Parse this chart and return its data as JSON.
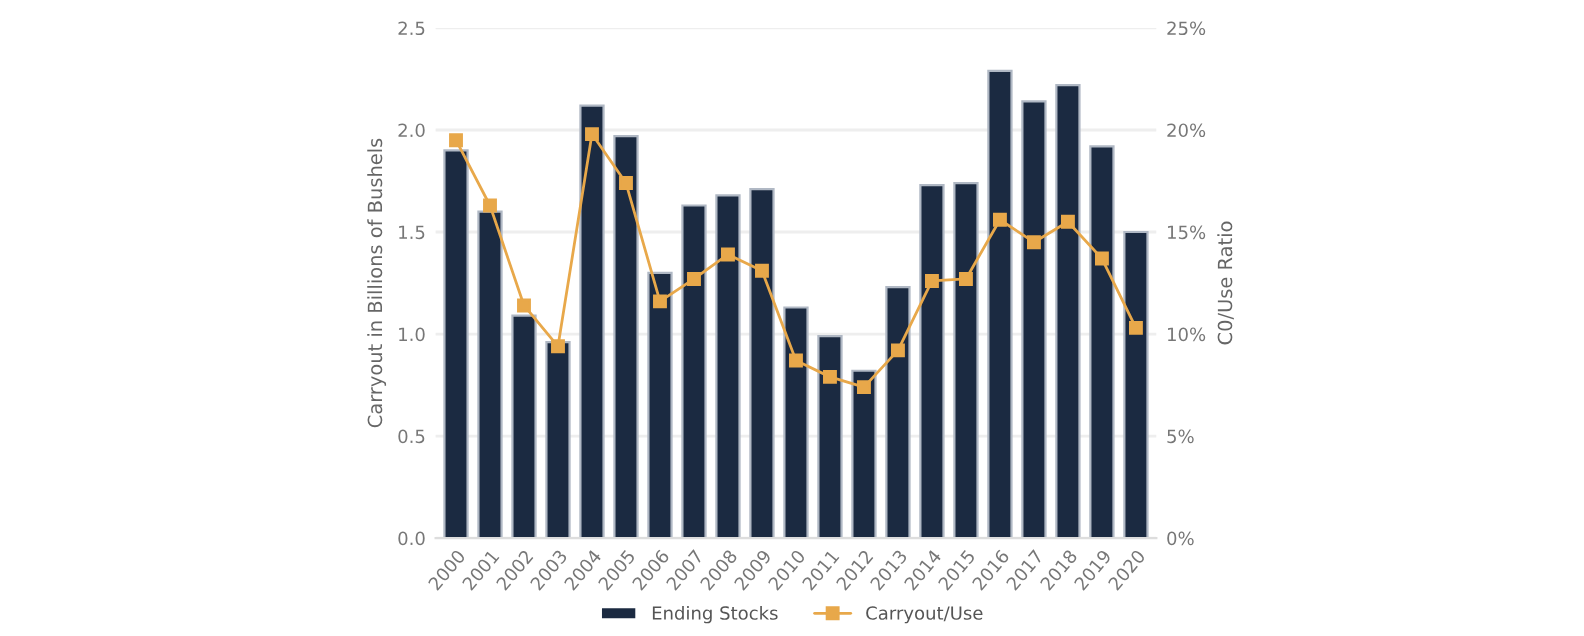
{
  "chart_data": {
    "type": "bar",
    "categories": [
      "2000",
      "2001",
      "2002",
      "2003",
      "2004",
      "2005",
      "2006",
      "2007",
      "2008",
      "2009",
      "2010",
      "2011",
      "2012",
      "2013",
      "2014",
      "2015",
      "2016",
      "2017",
      "2018",
      "2019",
      "2020"
    ],
    "series": [
      {
        "name": "Ending Stocks",
        "color": "#1b2a41",
        "values": [
          1.9,
          1.6,
          1.09,
          0.96,
          2.12,
          1.97,
          1.3,
          1.63,
          1.68,
          1.71,
          1.13,
          0.99,
          0.82,
          1.23,
          1.73,
          1.74,
          2.29,
          2.14,
          2.22,
          1.92,
          1.5
        ]
      },
      {
        "name": "Carryout/Use",
        "type": "line",
        "axis": "y2",
        "color": "#e8a84a",
        "marker": "square",
        "values": [
          19.5,
          16.3,
          11.4,
          9.4,
          19.8,
          17.4,
          11.6,
          12.7,
          13.9,
          13.1,
          8.7,
          7.9,
          7.4,
          9.2,
          12.6,
          12.7,
          15.6,
          14.5,
          15.5,
          13.7,
          10.3
        ]
      }
    ],
    "ylabel": "Carryout in Billions of Bushels",
    "y2label": "C0/Use Ratio",
    "ylim": [
      0,
      2.5
    ],
    "yticks": [
      {
        "value": 0,
        "label": "0.0"
      },
      {
        "value": 0.5,
        "label": "0.5"
      },
      {
        "value": 1,
        "label": "1.0"
      },
      {
        "value": 1.5,
        "label": "1.5"
      },
      {
        "value": 2,
        "label": "2.0"
      },
      {
        "value": 2.5,
        "label": "2.5"
      }
    ],
    "y2lim": [
      0,
      25
    ],
    "y2ticks": [
      {
        "value": 0,
        "label": "0%"
      },
      {
        "value": 5,
        "label": "5%"
      },
      {
        "value": 10,
        "label": "10%"
      },
      {
        "value": 15,
        "label": "15%"
      },
      {
        "value": 20,
        "label": "20%"
      },
      {
        "value": 25,
        "label": "25%"
      }
    ],
    "grid": "y",
    "legend": "bottom"
  }
}
